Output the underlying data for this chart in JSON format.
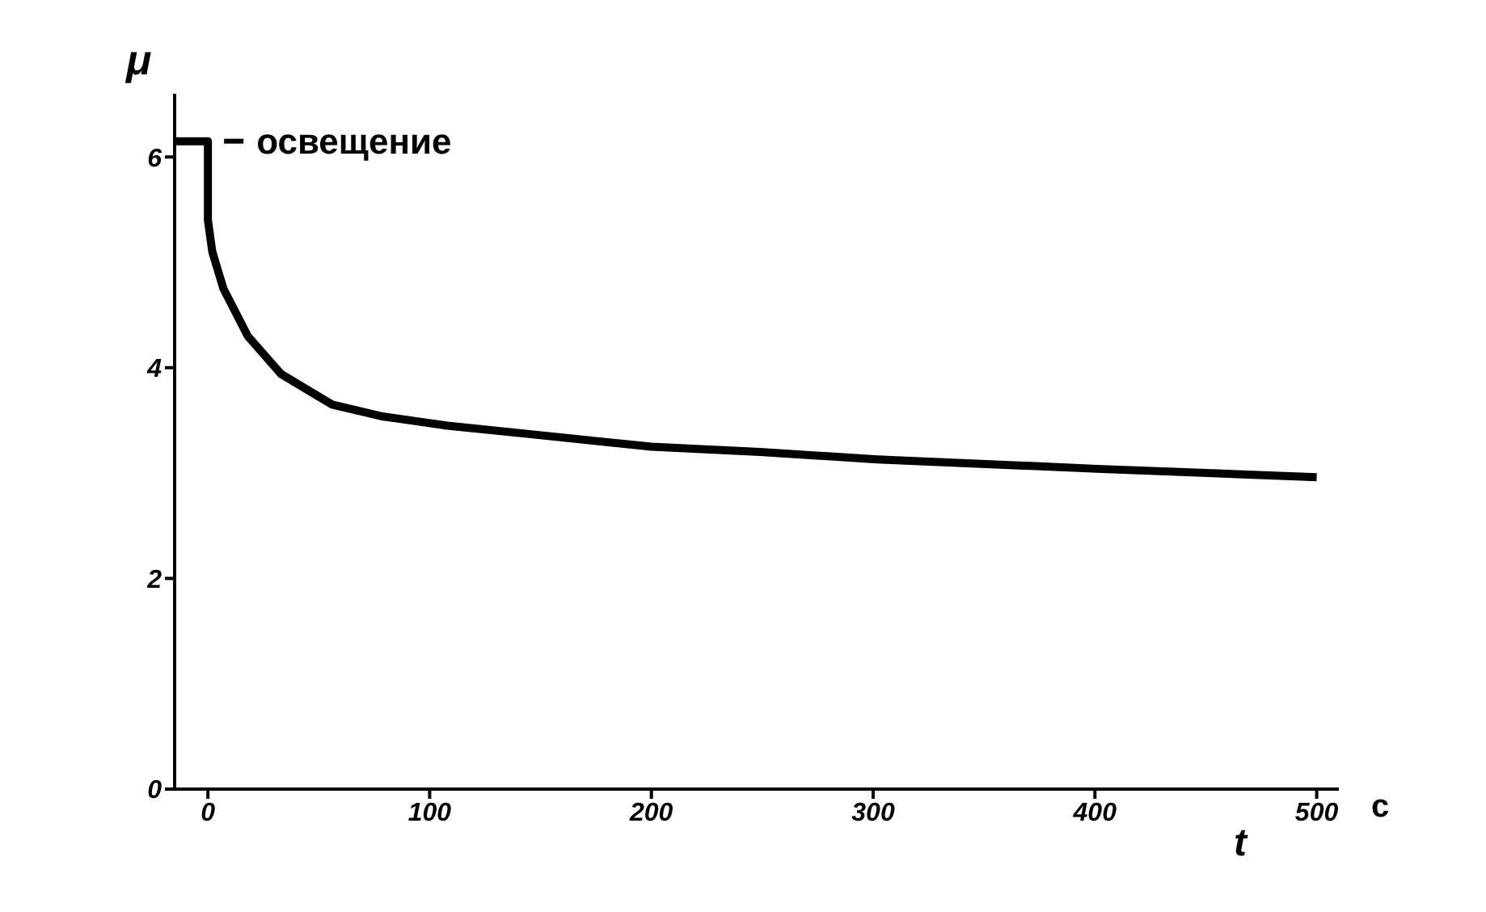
{
  "chart_data": {
    "type": "line",
    "xlabel": "t",
    "ylabel": "μ",
    "x": [
      -15,
      0,
      0,
      2,
      7,
      18,
      33,
      56,
      78,
      108,
      145,
      200,
      249,
      302,
      401,
      500
    ],
    "series": [
      {
        "color": "#000000",
        "values": [
          6.15,
          6.15,
          5.4,
          5.1,
          4.75,
          4.3,
          3.94,
          3.65,
          3.54,
          3.45,
          3.37,
          3.25,
          3.2,
          3.13,
          3.04,
          2.96
        ]
      }
    ],
    "xlim": [
      -15,
      510
    ],
    "xticks": [
      0,
      100,
      200,
      300,
      400,
      500
    ],
    "ylim": [
      0,
      6.6
    ],
    "yticks": [
      0,
      2,
      4,
      6
    ],
    "grid": false,
    "legend": false,
    "marker": "none",
    "line_style": "solid",
    "annotations": [
      {
        "text": "освещение",
        "x": 0,
        "y": 6.15
      },
      "с"
    ]
  }
}
